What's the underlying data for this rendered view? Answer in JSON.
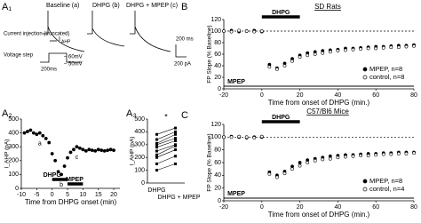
{
  "panels": {
    "a1": "A₁",
    "a2": "A₂",
    "a3": "A₃",
    "b": "B",
    "c": "C"
  },
  "traces": {
    "baseline": "Baseline (a)",
    "dhpg": "DHPG (b)",
    "dhpg_mpep": "DHPG + MPEP (c)",
    "current": "Current injection (truncated)",
    "voltage": "Voltage step",
    "iahp": "I",
    "iahp_sub": "AHP",
    "v1": "– 60mV",
    "v2": "– 50mV",
    "time_scale": "200 ms",
    "amp_scale": "200 pA",
    "step_scale": "200ms"
  },
  "chart_data": [
    {
      "type": "scatter",
      "ylabel": "I_AHP (pA)",
      "xlabel": "Time from DHPG onset (min)",
      "x": [
        -9,
        -8,
        -7,
        -6,
        -5,
        -4,
        -3,
        -2,
        -1,
        0,
        1,
        2,
        3,
        4,
        5,
        6,
        7,
        8,
        9,
        10,
        11,
        12,
        13,
        14,
        15,
        16,
        17,
        18,
        19,
        20
      ],
      "series": [
        {
          "color": "#000000",
          "marker": "filled",
          "values": [
            400,
            410,
            420,
            400,
            390,
            400,
            380,
            360,
            330,
            250,
            200,
            120,
            100,
            160,
            220,
            260,
            280,
            300,
            290,
            280,
            270,
            280,
            275,
            270,
            280,
            275,
            270,
            275,
            280,
            275
          ]
        }
      ],
      "xlim": [
        -10,
        22
      ],
      "xticks": [
        -10,
        -5,
        0,
        5,
        10,
        15,
        20
      ],
      "ylim": [
        0,
        500
      ],
      "yticks": [
        0,
        100,
        200,
        300,
        400,
        500
      ],
      "annotations": [
        {
          "text": "a",
          "x": -4
        },
        {
          "text": "b",
          "x": 3
        },
        {
          "text": "c",
          "x": 8
        }
      ],
      "bars": [
        {
          "label": "DHPG",
          "start": 0,
          "end": 5,
          "style": "thick"
        },
        {
          "label": "MPEP",
          "start": 5,
          "end": 10,
          "style": "thick"
        }
      ]
    },
    {
      "type": "paired",
      "ylabel": "I_AHP (pA)",
      "categories": [
        "DHPG",
        "DHPG + MPEP"
      ],
      "series": [
        {
          "values": [
            100,
            150
          ]
        },
        {
          "values": [
            150,
            210
          ]
        },
        {
          "values": [
            200,
            260
          ]
        },
        {
          "values": [
            220,
            290
          ]
        },
        {
          "values": [
            250,
            300
          ]
        },
        {
          "values": [
            280,
            330
          ]
        },
        {
          "values": [
            300,
            350
          ]
        },
        {
          "values": [
            310,
            380
          ]
        },
        {
          "values": [
            340,
            400
          ]
        },
        {
          "values": [
            380,
            430
          ]
        }
      ],
      "ylim": [
        0,
        500
      ],
      "yticks": [
        0,
        100,
        200,
        300,
        400,
        500
      ],
      "annotation": "*"
    },
    {
      "type": "scatter",
      "title": "SD Rats",
      "ylabel": "FP Slope (% Baseline)",
      "xlabel": "Time from onset of DHPG (min.)",
      "x": [
        -20,
        -16,
        -12,
        -8,
        -4,
        0,
        4,
        8,
        12,
        16,
        20,
        24,
        28,
        32,
        36,
        40,
        44,
        48,
        52,
        56,
        60,
        64,
        68,
        72,
        76,
        80
      ],
      "series": [
        {
          "name": "MPEP, n=8",
          "color": "#000000",
          "marker": "filled",
          "values": [
            100,
            101,
            99,
            100,
            101,
            99,
            42,
            36,
            44,
            52,
            58,
            62,
            64,
            66,
            67,
            68,
            70,
            70,
            71,
            72,
            73,
            73,
            74,
            75,
            75,
            76
          ]
        },
        {
          "name": "control, n=8",
          "color": "#000000",
          "marker": "open",
          "values": [
            100,
            99,
            101,
            100,
            99,
            100,
            38,
            34,
            40,
            48,
            55,
            58,
            60,
            62,
            64,
            66,
            67,
            68,
            69,
            70,
            70,
            71,
            72,
            72,
            73,
            74
          ]
        }
      ],
      "xlim": [
        -20,
        80
      ],
      "xticks": [
        -20,
        0,
        20,
        40,
        60,
        80
      ],
      "ylim": [
        0,
        120
      ],
      "yticks": [
        0,
        20,
        40,
        60,
        80,
        100,
        120
      ],
      "hline": 100,
      "legend": "lower right",
      "bars": [
        {
          "label": "DHPG",
          "start": 0,
          "end": 20,
          "style": "thick"
        },
        {
          "label": "MPEP",
          "start": -20,
          "end": 80,
          "style": "thin"
        }
      ]
    },
    {
      "type": "scatter",
      "title": "C57/Bl6 Mice",
      "ylabel": "FP Slope (% Baseline)",
      "xlabel": "Time from onset of DHPG (min.)",
      "x": [
        -20,
        -16,
        -12,
        -8,
        -4,
        0,
        4,
        8,
        12,
        16,
        20,
        24,
        28,
        32,
        36,
        40,
        44,
        48,
        52,
        56,
        60,
        64,
        68,
        72,
        76,
        80
      ],
      "series": [
        {
          "name": "MPEP, n=8",
          "color": "#000000",
          "marker": "filled",
          "values": [
            100,
            101,
            100,
            99,
            100,
            100,
            45,
            40,
            46,
            54,
            60,
            64,
            66,
            68,
            70,
            71,
            72,
            72,
            73,
            74,
            74,
            75,
            75,
            76,
            76,
            76
          ]
        },
        {
          "name": "control, n=4",
          "color": "#000000",
          "marker": "open",
          "values": [
            100,
            100,
            101,
            100,
            99,
            101,
            42,
            37,
            43,
            50,
            55,
            60,
            63,
            65,
            66,
            68,
            69,
            70,
            71,
            71,
            72,
            73,
            73,
            74,
            74,
            75
          ]
        }
      ],
      "xlim": [
        -20,
        80
      ],
      "xticks": [
        -20,
        0,
        20,
        40,
        60,
        80
      ],
      "ylim": [
        0,
        120
      ],
      "yticks": [
        0,
        20,
        40,
        60,
        80,
        100,
        120
      ],
      "hline": 100,
      "legend": "lower right",
      "bars": [
        {
          "label": "DHPG",
          "start": 0,
          "end": 20,
          "style": "thick"
        },
        {
          "label": "MPEP",
          "start": -20,
          "end": 80,
          "style": "thin"
        }
      ]
    }
  ]
}
